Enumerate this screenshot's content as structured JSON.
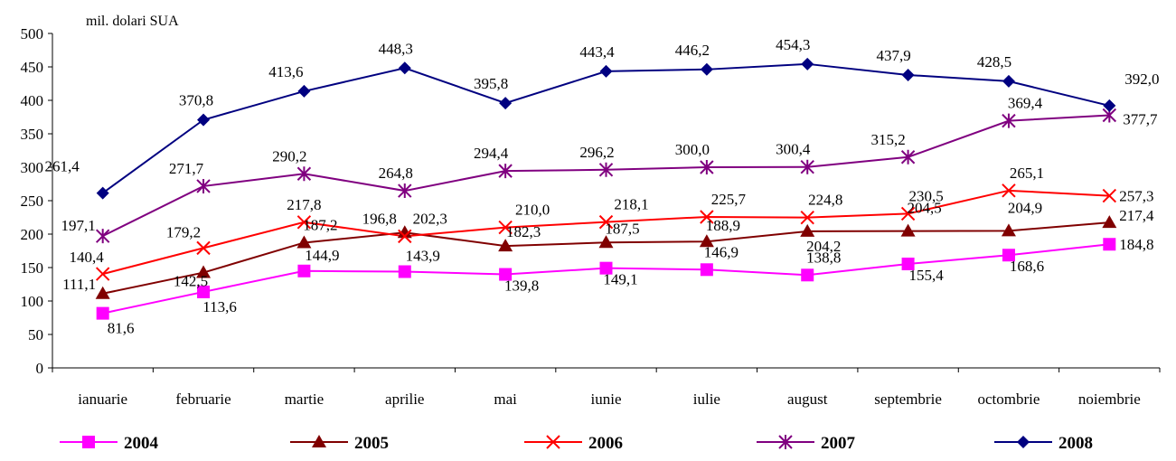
{
  "chart_data": {
    "type": "line",
    "unit_label": "mil. dolari SUA",
    "ylim": [
      0,
      500
    ],
    "yticks": [
      0,
      50,
      100,
      150,
      200,
      250,
      300,
      350,
      400,
      450,
      500
    ],
    "categories": [
      "ianuarie",
      "februarie",
      "martie",
      "aprilie",
      "mai",
      "iunie",
      "iulie",
      "august",
      "septembrie",
      "octombrie",
      "noiembrie"
    ],
    "grid": false,
    "legend_position": "bottom",
    "series": [
      {
        "name": "2004",
        "color": "#ff00ff",
        "marker": "square",
        "values": [
          81.6,
          113.6,
          144.9,
          143.9,
          139.8,
          149.1,
          146.9,
          138.8,
          155.4,
          168.6,
          184.8
        ],
        "labels": [
          "81,6",
          "113,6",
          "144,9",
          "143,9",
          "139,8",
          "149,1",
          "146,9",
          "138,8",
          "155,4",
          "168,6",
          "184,8"
        ]
      },
      {
        "name": "2005",
        "color": "#800000",
        "marker": "triangle",
        "values": [
          111.1,
          142.5,
          187.2,
          202.3,
          182.3,
          187.5,
          188.9,
          204.2,
          204.5,
          204.9,
          217.4
        ],
        "labels": [
          "111,1",
          "142,5",
          "187,2",
          "202,3",
          "182,3",
          "187,5",
          "188,9",
          "204,2",
          "204,5",
          "204,9",
          "217,4"
        ]
      },
      {
        "name": "2006",
        "color": "#ff0000",
        "marker": "x",
        "values": [
          140.4,
          179.2,
          217.8,
          196.8,
          210.0,
          218.1,
          225.7,
          224.8,
          230.5,
          265.1,
          257.3
        ],
        "labels": [
          "140,4",
          "179,2",
          "217,8",
          "196,8",
          "210,0",
          "218,1",
          "225,7",
          "224,8",
          "230,5",
          "265,1",
          "257,3"
        ]
      },
      {
        "name": "2007",
        "color": "#800080",
        "marker": "star",
        "values": [
          197.1,
          271.7,
          290.2,
          264.8,
          294.4,
          296.2,
          300.0,
          300.4,
          315.2,
          369.4,
          377.7
        ],
        "labels": [
          "197,1",
          "271,7",
          "290,2",
          "264,8",
          "294,4",
          "296,2",
          "300,0",
          "300,4",
          "315,2",
          "369,4",
          "377,7"
        ]
      },
      {
        "name": "2008",
        "color": "#000080",
        "marker": "diamond",
        "values": [
          261.4,
          370.8,
          413.6,
          448.3,
          395.8,
          443.4,
          446.2,
          454.3,
          437.9,
          428.5,
          392.0
        ],
        "labels": [
          "261,4",
          "370,8",
          "413,6",
          "448,3",
          "395,8",
          "443,4",
          "446,2",
          "454,3",
          "437,9",
          "428,5",
          "392,0"
        ]
      }
    ]
  }
}
